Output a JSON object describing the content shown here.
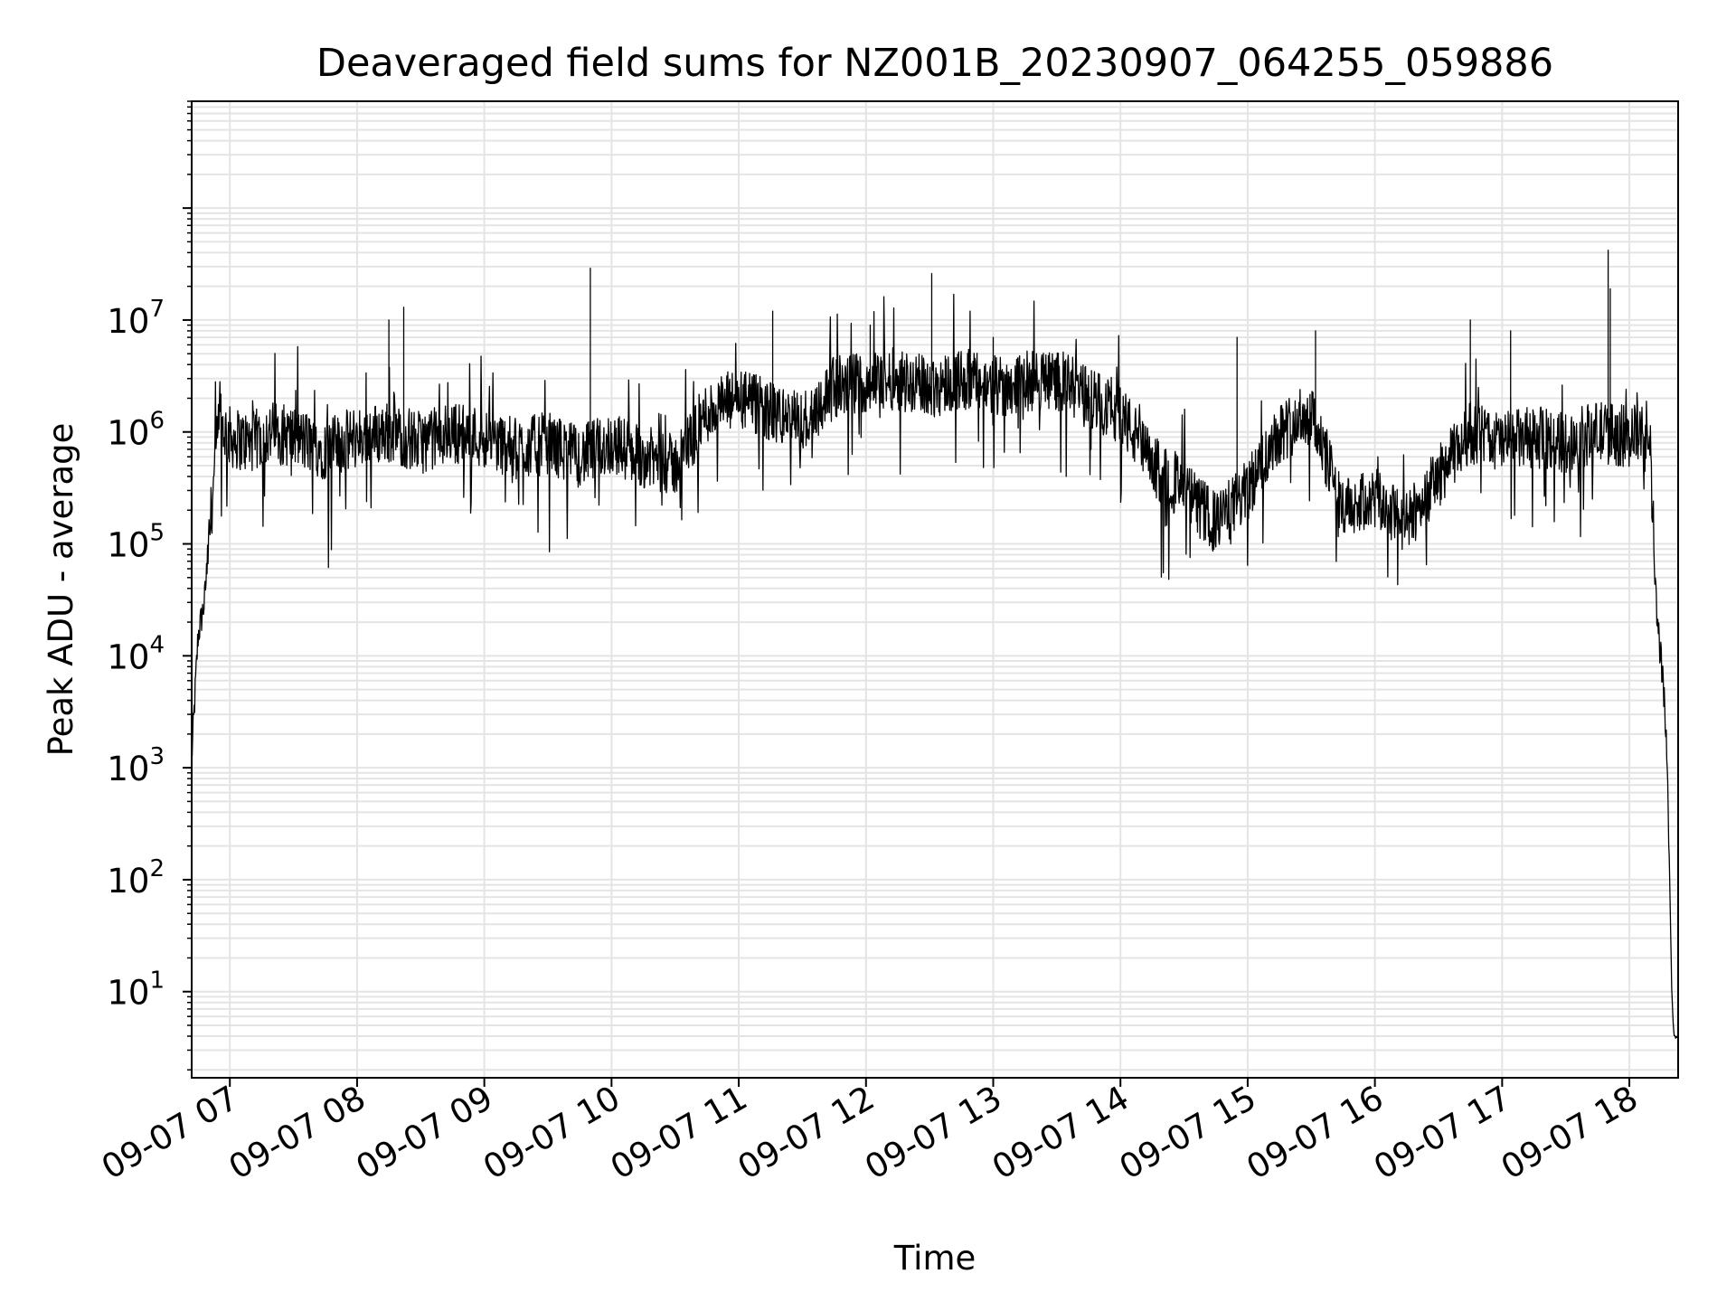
{
  "chart_data": {
    "type": "line",
    "title": "Deaveraged field sums for NZ001B_20230907_064255_059886",
    "xlabel": "Time",
    "ylabel": "Peak ADU - average",
    "x_type": "time",
    "y_scale": "log",
    "xlim": [
      "2023-09-07 06:42",
      "2023-09-07 18:23"
    ],
    "ylim": [
      1.7,
      900000000
    ],
    "grid": "major and minor, both axes",
    "x_tick_labels": [
      "09-07 07",
      "09-07 08",
      "09-07 09",
      "09-07 10",
      "09-07 11",
      "09-07 12",
      "09-07 13",
      "09-07 14",
      "09-07 15",
      "09-07 16",
      "09-07 17",
      "09-07 18"
    ],
    "y_tick_labels": [
      {
        "base": "10",
        "exp": "1"
      },
      {
        "base": "10",
        "exp": "2"
      },
      {
        "base": "10",
        "exp": "3"
      },
      {
        "base": "10",
        "exp": "4"
      },
      {
        "base": "10",
        "exp": "5"
      },
      {
        "base": "10",
        "exp": "6"
      },
      {
        "base": "10",
        "exp": "7"
      }
    ],
    "line_color": "#000000",
    "series": [
      {
        "x": [
          "2023-09-07 06:42",
          "2023-09-07 06:45",
          "2023-09-07 06:48",
          "2023-09-07 06:52",
          "2023-09-07 06:55",
          "2023-09-07 07:00",
          "2023-09-07 07:10",
          "2023-09-07 07:20",
          "2023-09-07 07:30",
          "2023-09-07 07:45",
          "2023-09-07 08:00",
          "2023-09-07 08:15",
          "2023-09-07 08:30",
          "2023-09-07 08:45",
          "2023-09-07 09:00",
          "2023-09-07 09:15",
          "2023-09-07 09:30",
          "2023-09-07 09:45",
          "2023-09-07 10:00",
          "2023-09-07 10:15",
          "2023-09-07 10:30",
          "2023-09-07 10:45",
          "2023-09-07 11:00",
          "2023-09-07 11:15",
          "2023-09-07 11:30",
          "2023-09-07 11:45",
          "2023-09-07 12:00",
          "2023-09-07 12:15",
          "2023-09-07 12:30",
          "2023-09-07 12:45",
          "2023-09-07 13:00",
          "2023-09-07 13:15",
          "2023-09-07 13:30",
          "2023-09-07 13:45",
          "2023-09-07 14:00",
          "2023-09-07 14:15",
          "2023-09-07 14:30",
          "2023-09-07 14:45",
          "2023-09-07 15:00",
          "2023-09-07 15:15",
          "2023-09-07 15:30",
          "2023-09-07 15:45",
          "2023-09-07 16:00",
          "2023-09-07 16:15",
          "2023-09-07 16:30",
          "2023-09-07 16:45",
          "2023-09-07 17:00",
          "2023-09-07 17:15",
          "2023-09-07 17:30",
          "2023-09-07 17:45",
          "2023-09-07 18:00",
          "2023-09-07 18:05",
          "2023-09-07 18:10",
          "2023-09-07 18:13",
          "2023-09-07 18:16",
          "2023-09-07 18:18",
          "2023-09-07 18:20",
          "2023-09-07 18:21",
          "2023-09-07 18:23"
        ],
        "y": [
          1200,
          15000,
          30000,
          300000,
          1200000,
          900000,
          800000,
          1000000,
          900000,
          700000,
          900000,
          1000000,
          800000,
          1000000,
          900000,
          700000,
          800000,
          600000,
          800000,
          600000,
          500000,
          1500000,
          2000000,
          1500000,
          1200000,
          2500000,
          2800000,
          3000000,
          2500000,
          3000000,
          2500000,
          2800000,
          3000000,
          2000000,
          1500000,
          500000,
          300000,
          150000,
          300000,
          1000000,
          1500000,
          200000,
          250000,
          150000,
          400000,
          1000000,
          800000,
          900000,
          800000,
          1000000,
          900000,
          1000000,
          600000,
          20000,
          6000,
          1000,
          10,
          4,
          4
        ],
        "spikes": [
          {
            "x": "2023-09-07 08:15",
            "y": 10000000
          },
          {
            "x": "2023-09-07 08:22",
            "y": 13000000
          },
          {
            "x": "2023-09-07 09:50",
            "y": 29000000
          },
          {
            "x": "2023-09-07 11:16",
            "y": 12000000
          },
          {
            "x": "2023-09-07 12:02",
            "y": 9000000
          },
          {
            "x": "2023-09-07 12:31",
            "y": 26000000
          },
          {
            "x": "2023-09-07 13:00",
            "y": 7000000
          },
          {
            "x": "2023-09-07 14:55",
            "y": 7000000
          },
          {
            "x": "2023-09-07 15:32",
            "y": 8000000
          },
          {
            "x": "2023-09-07 16:45",
            "y": 10000000
          },
          {
            "x": "2023-09-07 17:04",
            "y": 8000000
          },
          {
            "x": "2023-09-07 17:50",
            "y": 42000000
          },
          {
            "x": "2023-09-07 17:51",
            "y": 19000000
          }
        ]
      }
    ]
  }
}
